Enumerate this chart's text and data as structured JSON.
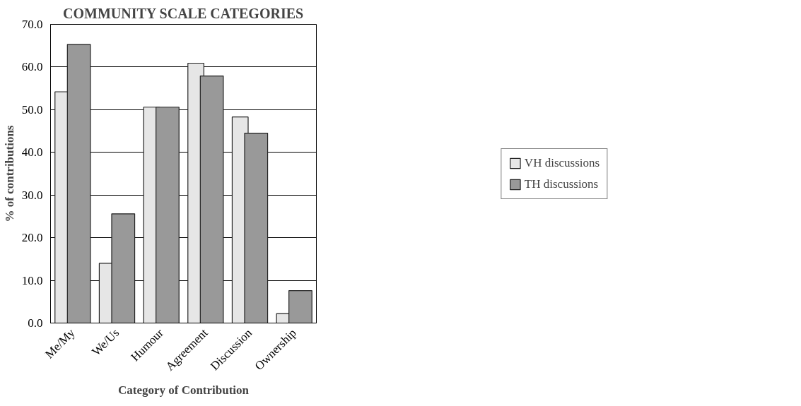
{
  "chart_data": {
    "type": "bar",
    "title": "COMMUNITY SCALE CATEGORIES",
    "xlabel": "Category of Contribution",
    "ylabel": "% of contributions",
    "categories": [
      "Me/My",
      "We/Us",
      "Humour",
      "Agreement",
      "Discussion",
      "Ownership"
    ],
    "series": [
      {
        "name": "VH discussions",
        "color": "#e6e6e6",
        "values": [
          54.2,
          14.0,
          50.6,
          60.9,
          48.3,
          2.2
        ]
      },
      {
        "name": "TH discussions",
        "color": "#999999",
        "values": [
          65.3,
          25.6,
          50.6,
          57.9,
          44.5,
          7.6
        ]
      }
    ],
    "ylim": [
      0,
      70
    ],
    "yticks": [
      {
        "value": 0,
        "label": "0.0"
      },
      {
        "value": 10,
        "label": "10.0"
      },
      {
        "value": 20,
        "label": "20.0"
      },
      {
        "value": 30,
        "label": "30.0"
      },
      {
        "value": 40,
        "label": "40.0"
      },
      {
        "value": 50,
        "label": "50.0"
      },
      {
        "value": 60,
        "label": "60.0"
      },
      {
        "value": 70,
        "label": "70.0"
      }
    ],
    "grid": "y",
    "legend": "right"
  }
}
